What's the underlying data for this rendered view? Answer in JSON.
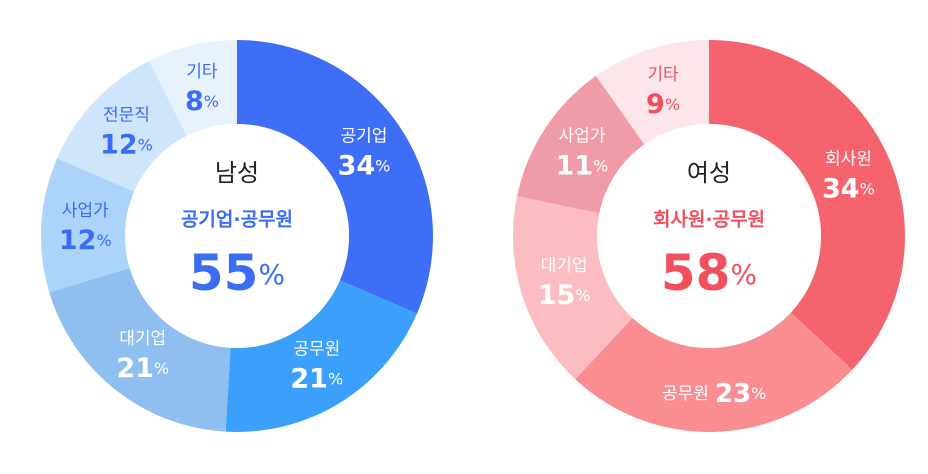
{
  "chart_data": [
    {
      "type": "donut",
      "unit": "%",
      "center": {
        "title": "남성",
        "subtitle": "공기업·공무원",
        "value": 55,
        "color": "#3a6cf4"
      },
      "categories": [
        "공기업",
        "공무원",
        "대기업",
        "사업가",
        "전문직",
        "기타"
      ],
      "values": [
        34,
        21,
        21,
        12,
        12,
        8
      ],
      "colors": [
        "#3d6ef5",
        "#3aa0fb",
        "#8ebff0",
        "#acd4fb",
        "#cfe5fb",
        "#e8f2fd"
      ],
      "label_colors": [
        "#ffffff",
        "#ffffff",
        "#ffffff",
        "#3a6cf4",
        "#3a6cf4",
        "#3a6cf4"
      ]
    },
    {
      "type": "donut",
      "unit": "%",
      "center": {
        "title": "여성",
        "subtitle": "회사원·공무원",
        "value": 58,
        "color": "#f0505c"
      },
      "categories": [
        "회사원",
        "공무원",
        "대기업",
        "사업가",
        "기타"
      ],
      "values": [
        34,
        23,
        15,
        11,
        9
      ],
      "colors": [
        "#f5636e",
        "#fa8d92",
        "#fbbdc1",
        "#ef9ba8",
        "#fde6ea"
      ],
      "label_colors": [
        "#ffffff",
        "#ffffff",
        "#ffffff",
        "#ffffff",
        "#f0505c"
      ]
    }
  ]
}
